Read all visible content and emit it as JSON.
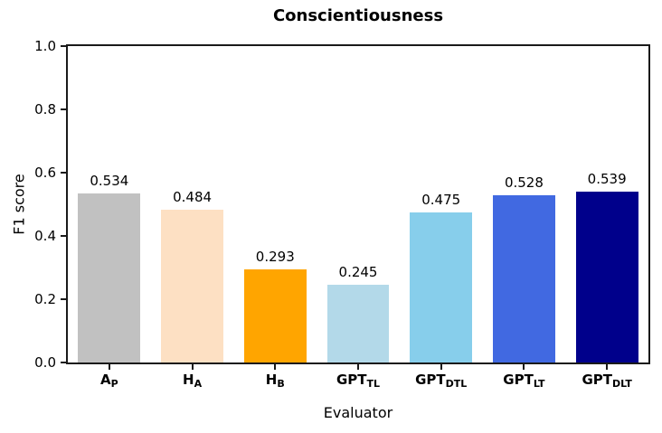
{
  "chart_data": {
    "type": "bar",
    "title": "Conscientiousness",
    "xlabel": "Evaluator",
    "ylabel": "F1 score",
    "ylim": [
      0.0,
      1.0
    ],
    "ytick_labels": [
      "0.0",
      "0.2",
      "0.4",
      "0.6",
      "0.8",
      "1.0"
    ],
    "categories": [
      "A_P",
      "H_A",
      "H_B",
      "GPT_TL",
      "GPT_DTL",
      "GPT_LT",
      "GPT_DLT"
    ],
    "category_labels": [
      {
        "main": "A",
        "sub": "P"
      },
      {
        "main": "H",
        "sub": "A"
      },
      {
        "main": "H",
        "sub": "B"
      },
      {
        "main": "GPT",
        "sub": "TL"
      },
      {
        "main": "GPT",
        "sub": "DTL"
      },
      {
        "main": "GPT",
        "sub": "LT"
      },
      {
        "main": "GPT",
        "sub": "DLT"
      }
    ],
    "values": [
      0.534,
      0.484,
      0.293,
      0.245,
      0.475,
      0.528,
      0.539
    ],
    "value_labels": [
      "0.534",
      "0.484",
      "0.293",
      "0.245",
      "0.475",
      "0.528",
      "0.539"
    ],
    "bar_colors": [
      "#c1c1c1",
      "#fde0c3",
      "#ffa500",
      "#b3d9e9",
      "#87ceeb",
      "#4169e1",
      "#00008b"
    ],
    "bar_width_fraction": 0.75,
    "grid": false,
    "legend_position": "none"
  }
}
